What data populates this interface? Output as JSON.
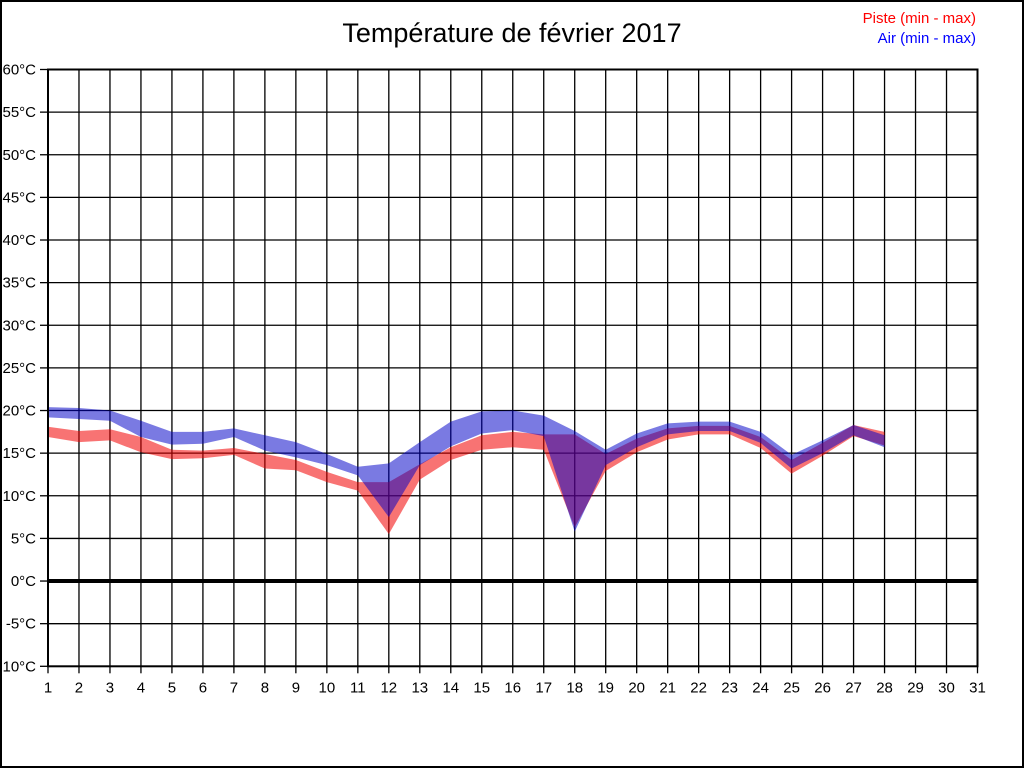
{
  "title": "Température de février 2017",
  "chart_data": {
    "type": "area",
    "title": "Température de février 2017",
    "subtitle": "",
    "xlabel": "",
    "ylabel": "",
    "grid": true,
    "legend_position": "top-right",
    "xlim": [
      1,
      31
    ],
    "ylim": [
      -10,
      60
    ],
    "x_ticks": [
      1,
      2,
      3,
      4,
      5,
      6,
      7,
      8,
      9,
      10,
      11,
      12,
      13,
      14,
      15,
      16,
      17,
      18,
      19,
      20,
      21,
      22,
      23,
      24,
      25,
      26,
      27,
      28,
      29,
      30,
      31
    ],
    "y_tick_values": [
      60,
      55,
      50,
      45,
      40,
      35,
      30,
      25,
      20,
      15,
      10,
      5,
      0,
      -5,
      -10
    ],
    "y_tick_labels": [
      "60°C",
      "55°C",
      "50°C",
      "45°C",
      "40°C",
      "35°C",
      "30°C",
      "25°C",
      "20°C",
      "15°C",
      "10°C",
      "5°C",
      "0°C",
      "-5°C",
      "-10°C"
    ],
    "zero_line_value": 0,
    "x": [
      1,
      2,
      3,
      4,
      5,
      6,
      7,
      8,
      9,
      10,
      11,
      12,
      13,
      14,
      15,
      16,
      17,
      18,
      19,
      20,
      21,
      22,
      23,
      24,
      25,
      26,
      27,
      28
    ],
    "series": [
      {
        "name": "Piste (min - max)",
        "legend_color": "#ff0000",
        "fill": "#f20000",
        "fill_opacity": 0.55,
        "min": [
          16.9,
          16.3,
          16.5,
          15.1,
          14.3,
          14.4,
          14.8,
          13.2,
          13.0,
          11.6,
          10.6,
          5.5,
          11.9,
          14.2,
          15.4,
          15.7,
          15.4,
          6.3,
          12.9,
          15.1,
          16.6,
          17.2,
          17.2,
          15.6,
          12.6,
          14.7,
          17.0,
          15.9
        ],
        "max": [
          18.1,
          17.6,
          17.8,
          16.9,
          15.4,
          15.3,
          15.6,
          14.9,
          14.2,
          12.8,
          11.6,
          11.6,
          13.7,
          15.7,
          17.1,
          17.5,
          17.2,
          17.2,
          14.9,
          16.7,
          17.9,
          18.2,
          18.2,
          16.9,
          14.2,
          16.2,
          18.3,
          17.5
        ]
      },
      {
        "name": "Air (min - max)",
        "legend_color": "#0000ff",
        "fill": "#0000c8",
        "fill_opacity": 0.52,
        "min": [
          19.2,
          19.0,
          18.8,
          16.9,
          16.0,
          16.1,
          16.9,
          15.3,
          14.5,
          13.6,
          12.4,
          7.5,
          13.6,
          15.8,
          17.3,
          17.7,
          17.0,
          5.8,
          13.6,
          15.7,
          17.2,
          17.6,
          17.6,
          16.2,
          13.2,
          15.0,
          17.1,
          15.7
        ],
        "max": [
          20.4,
          20.3,
          20.0,
          18.8,
          17.5,
          17.5,
          17.9,
          17.1,
          16.3,
          14.9,
          13.4,
          13.8,
          16.3,
          18.7,
          19.9,
          20.0,
          19.4,
          17.6,
          15.4,
          17.3,
          18.5,
          18.7,
          18.7,
          17.5,
          14.8,
          16.5,
          18.3,
          17.1
        ]
      }
    ]
  }
}
